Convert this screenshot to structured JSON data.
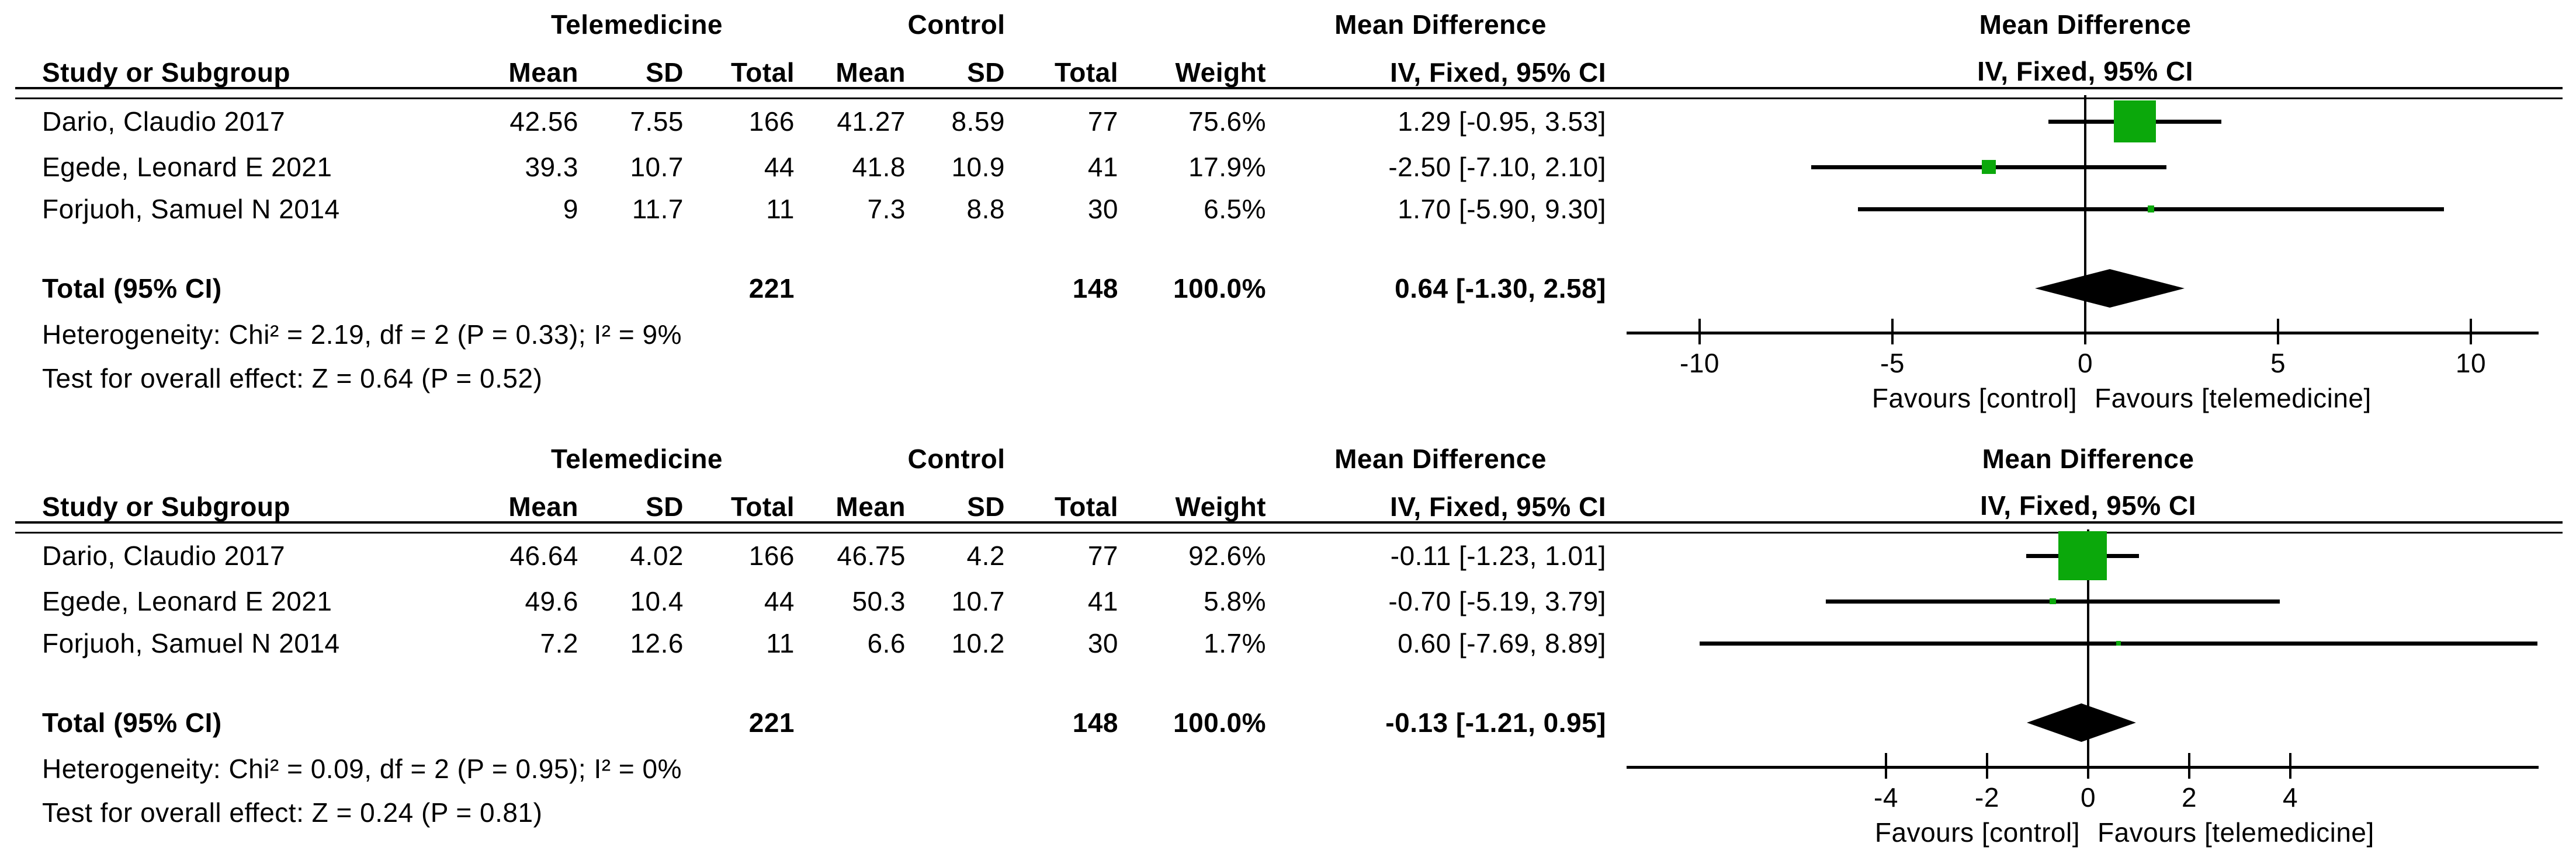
{
  "chart_data": {
    "type": "forest",
    "marker_color": "#0BA80B",
    "line_color": "#000000",
    "panels": [
      {
        "group_labels": {
          "exp": "Telemedicine",
          "ctrl": "Control",
          "effect": "Mean Difference"
        },
        "cols": {
          "study": "Study or Subgroup",
          "mean": "Mean",
          "sd": "SD",
          "total": "Total",
          "mean2": "Mean",
          "sd2": "SD",
          "total2": "Total",
          "weight": "Weight",
          "ci": "IV, Fixed, 95% CI"
        },
        "plot_title": "Mean Difference",
        "plot_subtitle": "IV, Fixed, 95% CI",
        "studies": [
          {
            "name": "Dario, Claudio 2017",
            "t_mean": "42.56",
            "t_sd": "7.55",
            "t_total": "166",
            "c_mean": "41.27",
            "c_sd": "8.59",
            "c_total": "77",
            "weight": "75.6%",
            "ci_text": "1.29 [-0.95, 3.53]",
            "md": 1.29,
            "lo": -0.95,
            "hi": 3.53,
            "weight_pct": 75.6
          },
          {
            "name": "Egede, Leonard E 2021",
            "t_mean": "39.3",
            "t_sd": "10.7",
            "t_total": "44",
            "c_mean": "41.8",
            "c_sd": "10.9",
            "c_total": "41",
            "weight": "17.9%",
            "ci_text": "-2.50 [-7.10, 2.10]",
            "md": -2.5,
            "lo": -7.1,
            "hi": 2.1,
            "weight_pct": 17.9
          },
          {
            "name": "Forjuoh, Samuel N 2014",
            "t_mean": "9",
            "t_sd": "11.7",
            "t_total": "11",
            "c_mean": "7.3",
            "c_sd": "8.8",
            "c_total": "30",
            "weight": "6.5%",
            "ci_text": "1.70 [-5.90, 9.30]",
            "md": 1.7,
            "lo": -5.9,
            "hi": 9.3,
            "weight_pct": 6.5
          }
        ],
        "total_row": {
          "label": "Total (95% CI)",
          "t_total": "221",
          "c_total": "148",
          "weight": "100.0%",
          "ci_text": "0.64 [-1.30, 2.58]",
          "md": 0.64,
          "lo": -1.3,
          "hi": 2.58
        },
        "heterogeneity_text": "Heterogeneity: Chi² = 2.19, df = 2 (P = 0.33); I² = 9%",
        "overall_effect_text": "Test for overall effect: Z = 0.64 (P = 0.52)",
        "axis": {
          "min": -10,
          "max": 10,
          "ticks": [
            -10,
            -5,
            0,
            5,
            10
          ]
        },
        "favours_left": "Favours [control]",
        "favours_right": "Favours [telemedicine]"
      },
      {
        "group_labels": {
          "exp": "Telemedicine",
          "ctrl": "Control",
          "effect": "Mean Difference"
        },
        "cols": {
          "study": "Study or Subgroup",
          "mean": "Mean",
          "sd": "SD",
          "total": "Total",
          "mean2": "Mean",
          "sd2": "SD",
          "total2": "Total",
          "weight": "Weight",
          "ci": "IV, Fixed, 95% CI"
        },
        "plot_title": "Mean Difference",
        "plot_subtitle": "IV, Fixed, 95% CI",
        "studies": [
          {
            "name": "Dario, Claudio 2017",
            "t_mean": "46.64",
            "t_sd": "4.02",
            "t_total": "166",
            "c_mean": "46.75",
            "c_sd": "4.2",
            "c_total": "77",
            "weight": "92.6%",
            "ci_text": "-0.11 [-1.23, 1.01]",
            "md": -0.11,
            "lo": -1.23,
            "hi": 1.01,
            "weight_pct": 92.6
          },
          {
            "name": "Egede, Leonard E 2021",
            "t_mean": "49.6",
            "t_sd": "10.4",
            "t_total": "44",
            "c_mean": "50.3",
            "c_sd": "10.7",
            "c_total": "41",
            "weight": "5.8%",
            "ci_text": "-0.70 [-5.19, 3.79]",
            "md": -0.7,
            "lo": -5.19,
            "hi": 3.79,
            "weight_pct": 5.8
          },
          {
            "name": "Forjuoh, Samuel N 2014",
            "t_mean": "7.2",
            "t_sd": "12.6",
            "t_total": "11",
            "c_mean": "6.6",
            "c_sd": "10.2",
            "c_total": "30",
            "weight": "1.7%",
            "ci_text": "0.60 [-7.69, 8.89]",
            "md": 0.6,
            "lo": -7.69,
            "hi": 8.89,
            "weight_pct": 1.7
          }
        ],
        "total_row": {
          "label": "Total (95% CI)",
          "t_total": "221",
          "c_total": "148",
          "weight": "100.0%",
          "ci_text": "-0.13 [-1.21, 0.95]",
          "md": -0.13,
          "lo": -1.21,
          "hi": 0.95
        },
        "heterogeneity_text": "Heterogeneity: Chi² = 0.09, df = 2 (P = 0.95); I² = 0%",
        "overall_effect_text": "Test for overall effect: Z = 0.24 (P = 0.81)",
        "axis": {
          "min": -4,
          "max": 4,
          "ticks": [
            -4,
            -2,
            0,
            2,
            4
          ]
        },
        "favours_left": "Favours [control]",
        "favours_right": "Favours [telemedicine]"
      }
    ]
  }
}
